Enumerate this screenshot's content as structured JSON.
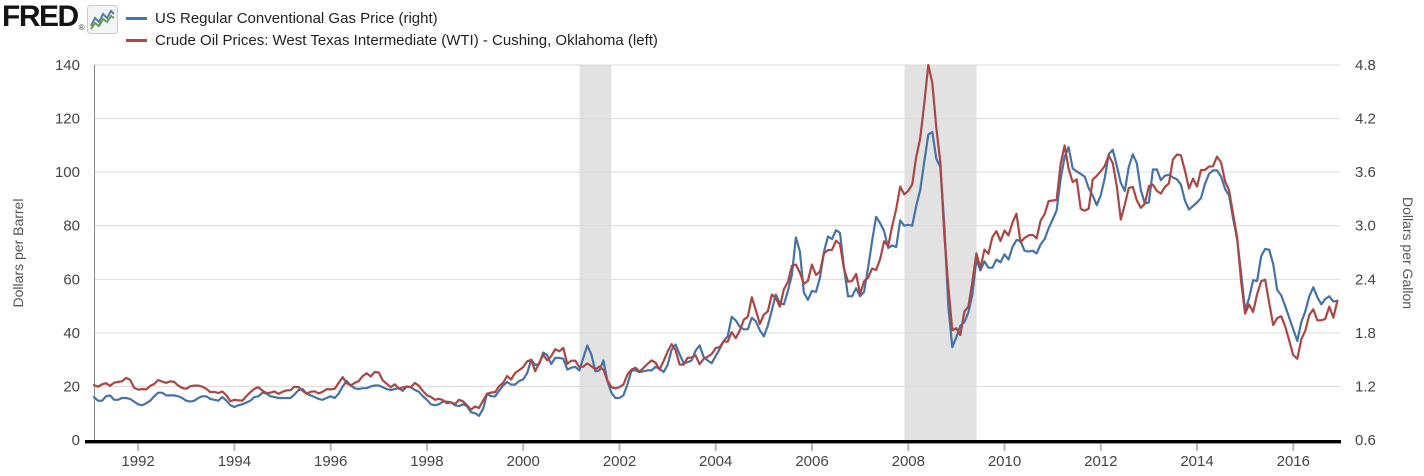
{
  "header": {
    "logo_text": "FRED",
    "logo_registered": "®",
    "legend": [
      {
        "label": "US Regular Conventional Gas Price (right)",
        "color": "#4572a7"
      },
      {
        "label": "Crude Oil Prices: West Texas Intermediate (WTI) - Cushing, Oklahoma (left)",
        "color": "#aa4643"
      }
    ]
  },
  "chart_data": {
    "type": "line",
    "title": "",
    "grid": "horizontal",
    "background": "#ffffff",
    "gridline_color": "#d9d9d9",
    "recession_band_color": "#e2e2e2",
    "axis_line_color": "#000000",
    "plot_border_color": "#888888",
    "tick_mark_color": "#a9bccd",
    "tick_label_color": "#444444",
    "left_axis": {
      "title": "Dollars per Barrel",
      "range": [
        0,
        140
      ],
      "ticks": [
        0,
        20,
        40,
        60,
        80,
        100,
        120,
        140
      ]
    },
    "right_axis": {
      "title": "Dollars per Gallon",
      "range": [
        0.6,
        4.8
      ],
      "ticks": [
        0.6,
        1.2,
        1.8,
        2.4,
        3.0,
        3.6,
        4.2,
        4.8
      ]
    },
    "x_axis": {
      "range": [
        1991.083,
        2016.97
      ],
      "tick_years": [
        1992,
        1994,
        1996,
        1998,
        2000,
        2002,
        2004,
        2006,
        2008,
        2010,
        2012,
        2014,
        2016
      ]
    },
    "recession_bands": [
      [
        2001.17,
        2001.83
      ],
      [
        2007.92,
        2009.42
      ]
    ],
    "series_start": 1991.083,
    "series_step_years": 0.08333,
    "series": [
      {
        "name": "US Regular Conventional Gas Price (right)",
        "axis": "right",
        "color": "#4572a7",
        "units": "Dollars per Gallon",
        "values": [
          1.08,
          1.04,
          1.04,
          1.09,
          1.1,
          1.05,
          1.05,
          1.07,
          1.07,
          1.06,
          1.03,
          1.0,
          0.99,
          1.01,
          1.04,
          1.09,
          1.13,
          1.13,
          1.1,
          1.1,
          1.1,
          1.09,
          1.07,
          1.04,
          1.03,
          1.04,
          1.07,
          1.09,
          1.09,
          1.06,
          1.05,
          1.04,
          1.08,
          1.04,
          0.99,
          0.97,
          0.99,
          1.0,
          1.02,
          1.04,
          1.08,
          1.09,
          1.13,
          1.12,
          1.09,
          1.08,
          1.07,
          1.07,
          1.07,
          1.07,
          1.11,
          1.16,
          1.17,
          1.12,
          1.1,
          1.08,
          1.06,
          1.05,
          1.07,
          1.09,
          1.07,
          1.12,
          1.2,
          1.26,
          1.21,
          1.18,
          1.17,
          1.18,
          1.18,
          1.2,
          1.21,
          1.21,
          1.19,
          1.17,
          1.16,
          1.17,
          1.18,
          1.15,
          1.2,
          1.19,
          1.16,
          1.14,
          1.09,
          1.05,
          1.0,
          0.99,
          1.0,
          1.03,
          1.03,
          1.02,
          0.99,
          0.98,
          1.0,
          0.98,
          0.91,
          0.9,
          0.87,
          0.95,
          1.12,
          1.09,
          1.09,
          1.15,
          1.21,
          1.25,
          1.22,
          1.22,
          1.26,
          1.28,
          1.35,
          1.5,
          1.44,
          1.45,
          1.58,
          1.55,
          1.45,
          1.52,
          1.52,
          1.51,
          1.39,
          1.41,
          1.42,
          1.38,
          1.52,
          1.66,
          1.56,
          1.37,
          1.38,
          1.49,
          1.26,
          1.13,
          1.07,
          1.07,
          1.1,
          1.22,
          1.38,
          1.38,
          1.36,
          1.37,
          1.38,
          1.38,
          1.42,
          1.4,
          1.36,
          1.44,
          1.61,
          1.67,
          1.56,
          1.46,
          1.47,
          1.49,
          1.6,
          1.66,
          1.53,
          1.49,
          1.46,
          1.54,
          1.62,
          1.71,
          1.76,
          1.98,
          1.94,
          1.87,
          1.84,
          1.84,
          1.97,
          1.93,
          1.83,
          1.76,
          1.88,
          2.05,
          2.23,
          2.13,
          2.12,
          2.27,
          2.45,
          2.87,
          2.71,
          2.25,
          2.17,
          2.27,
          2.26,
          2.42,
          2.71,
          2.88,
          2.85,
          2.95,
          2.92,
          2.53,
          2.21,
          2.21,
          2.3,
          2.21,
          2.26,
          2.53,
          2.83,
          3.1,
          3.03,
          2.94,
          2.75,
          2.78,
          2.76,
          3.06,
          3.0,
          3.01,
          3.0,
          3.22,
          3.4,
          3.71,
          4.02,
          4.05,
          3.75,
          3.66,
          3.01,
          2.1,
          1.64,
          1.75,
          1.88,
          1.92,
          2.03,
          2.23,
          2.62,
          2.5,
          2.6,
          2.53,
          2.53,
          2.62,
          2.59,
          2.68,
          2.62,
          2.76,
          2.84,
          2.83,
          2.72,
          2.71,
          2.72,
          2.69,
          2.79,
          2.85,
          2.97,
          3.07,
          3.17,
          3.52,
          3.77,
          3.88,
          3.64,
          3.61,
          3.58,
          3.55,
          3.42,
          3.34,
          3.23,
          3.34,
          3.53,
          3.8,
          3.85,
          3.67,
          3.48,
          3.39,
          3.66,
          3.8,
          3.7,
          3.4,
          3.25,
          3.26,
          3.63,
          3.63,
          3.51,
          3.56,
          3.57,
          3.54,
          3.52,
          3.46,
          3.28,
          3.18,
          3.22,
          3.26,
          3.31,
          3.47,
          3.58,
          3.62,
          3.62,
          3.55,
          3.41,
          3.34,
          3.08,
          2.85,
          2.47,
          2.05,
          2.19,
          2.39,
          2.38,
          2.66,
          2.74,
          2.73,
          2.57,
          2.28,
          2.22,
          2.1,
          1.97,
          1.84,
          1.71,
          1.92,
          2.04,
          2.21,
          2.31,
          2.2,
          2.12,
          2.18,
          2.21,
          2.15,
          2.16
        ]
      },
      {
        "name": "Crude Oil Prices: West Texas Intermediate (WTI) - Cushing, Oklahoma (left)",
        "axis": "left",
        "color": "#aa4643",
        "units": "Dollars per Barrel",
        "values": [
          20.5,
          19.9,
          20.8,
          21.2,
          20.2,
          21.4,
          21.7,
          21.9,
          23.2,
          22.5,
          19.5,
          18.8,
          19.0,
          18.9,
          20.2,
          20.9,
          22.4,
          21.8,
          21.3,
          21.9,
          21.7,
          20.3,
          19.4,
          19.1,
          20.1,
          20.3,
          20.3,
          19.9,
          19.1,
          17.9,
          18.0,
          17.5,
          18.1,
          16.7,
          14.5,
          15.0,
          14.8,
          14.7,
          16.4,
          17.9,
          19.1,
          19.7,
          18.4,
          17.5,
          17.7,
          18.1,
          17.2,
          18.0,
          18.5,
          18.6,
          19.9,
          19.7,
          18.4,
          17.3,
          18.0,
          18.2,
          17.4,
          18.0,
          19.0,
          18.9,
          19.1,
          21.3,
          23.5,
          21.2,
          20.4,
          21.3,
          22.0,
          23.9,
          24.9,
          23.7,
          25.4,
          25.2,
          22.2,
          21.0,
          19.7,
          20.8,
          19.2,
          19.6,
          19.9,
          19.8,
          21.3,
          20.2,
          18.3,
          16.7,
          16.1,
          15.0,
          15.4,
          14.9,
          13.7,
          14.1,
          13.4,
          15.0,
          14.4,
          13.0,
          11.3,
          12.5,
          12.0,
          14.7,
          17.3,
          17.7,
          17.9,
          20.1,
          21.3,
          23.9,
          22.6,
          25.0,
          26.1,
          27.2,
          29.4,
          29.9,
          25.7,
          28.8,
          31.8,
          29.7,
          31.3,
          33.9,
          33.1,
          34.4,
          28.4,
          29.6,
          29.6,
          27.2,
          27.4,
          28.6,
          27.6,
          26.4,
          27.4,
          26.2,
          22.2,
          19.7,
          19.3,
          19.7,
          20.7,
          24.4,
          26.3,
          27.0,
          25.5,
          26.9,
          28.4,
          29.7,
          28.9,
          26.3,
          29.4,
          33.0,
          35.8,
          33.5,
          28.2,
          28.1,
          30.7,
          30.8,
          31.6,
          28.3,
          30.3,
          31.1,
          32.1,
          34.3,
          34.7,
          36.8,
          36.7,
          40.3,
          38.0,
          40.8,
          44.9,
          46.0,
          53.3,
          48.5,
          43.3,
          46.8,
          48.0,
          54.3,
          53.0,
          49.8,
          56.3,
          59.0,
          65.0,
          65.5,
          62.4,
          58.3,
          59.4,
          65.5,
          61.6,
          62.9,
          69.7,
          70.9,
          71.0,
          74.4,
          73.1,
          63.9,
          59.1,
          59.4,
          62.0,
          54.5,
          59.3,
          60.6,
          64.0,
          63.5,
          67.5,
          74.2,
          72.4,
          79.9,
          86.2,
          94.6,
          91.7,
          93.0,
          95.4,
          105.6,
          112.6,
          125.4,
          140.0,
          133.4,
          116.6,
          103.9,
          76.7,
          57.4,
          41.0,
          41.7,
          39.2,
          48.0,
          49.8,
          59.2,
          69.7,
          64.1,
          71.1,
          69.5,
          75.8,
          78.0,
          74.3,
          78.2,
          76.4,
          81.2,
          84.5,
          73.8,
          75.4,
          76.4,
          76.6,
          75.3,
          81.9,
          84.3,
          89.2,
          89.4,
          89.6,
          102.9,
          110.0,
          101.3,
          96.3,
          97.3,
          86.3,
          85.6,
          86.4,
          97.2,
          98.6,
          100.3,
          102.3,
          106.2,
          103.3,
          94.7,
          82.3,
          87.9,
          94.1,
          94.5,
          89.5,
          86.7,
          88.2,
          94.8,
          95.3,
          93.0,
          92.0,
          94.5,
          95.8,
          104.7,
          106.6,
          106.3,
          100.5,
          93.9,
          97.6,
          94.6,
          100.8,
          100.8,
          102.1,
          102.2,
          105.8,
          103.6,
          96.5,
          93.2,
          84.4,
          75.8,
          59.3,
          47.2,
          50.6,
          47.8,
          54.4,
          59.3,
          59.8,
          51.2,
          42.9,
          45.5,
          46.2,
          42.4,
          37.2,
          31.7,
          30.3,
          37.6,
          40.8,
          46.7,
          48.8,
          44.7,
          44.7,
          45.2,
          49.8,
          45.7,
          52.0
        ]
      }
    ]
  }
}
